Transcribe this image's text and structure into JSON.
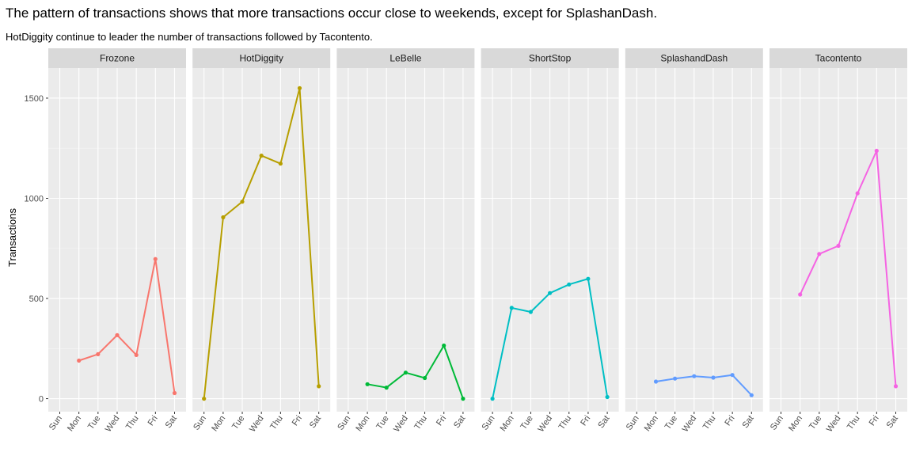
{
  "chart_data": {
    "type": "line",
    "title": "The pattern of transactions shows that more transactions occur close to weekends, except for SplashanDash.",
    "subtitle": "HotDiggity continue to leader the number of transactions followed by Tacontento.",
    "xlabel": "",
    "ylabel": "Transactions",
    "ylim": [
      -65,
      1650
    ],
    "y_ticks": [
      0,
      500,
      1000,
      1500
    ],
    "categories": [
      "Sun",
      "Mon",
      "Tue",
      "Wed",
      "Thu",
      "Fri",
      "Sat"
    ],
    "grid": true,
    "legend": "none",
    "facets": [
      {
        "name": "Frozone",
        "color": "#F8766D",
        "values": [
          null,
          190,
          222,
          317,
          218,
          697,
          28
        ]
      },
      {
        "name": "HotDiggity",
        "color": "#B79F00",
        "values": [
          0,
          905,
          983,
          1213,
          1173,
          1550,
          62
        ]
      },
      {
        "name": "LeBelle",
        "color": "#00BA38",
        "values": [
          null,
          72,
          55,
          130,
          103,
          265,
          0
        ]
      },
      {
        "name": "ShortStop",
        "color": "#00BFC4",
        "values": [
          0,
          453,
          433,
          527,
          570,
          598,
          8
        ]
      },
      {
        "name": "SplashandDash",
        "color": "#619CFF",
        "values": [
          null,
          85,
          100,
          112,
          105,
          118,
          17
        ]
      },
      {
        "name": "Tacontento",
        "color": "#F564E3",
        "values": [
          null,
          520,
          722,
          763,
          1025,
          1237,
          62
        ]
      }
    ]
  }
}
